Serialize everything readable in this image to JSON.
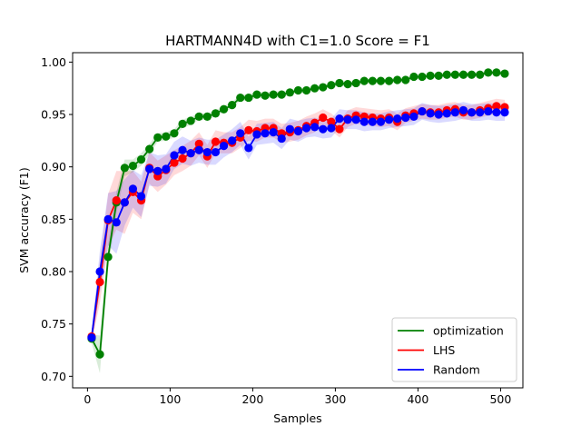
{
  "chart_data": {
    "type": "line",
    "title": "HARTMANN4D with C1=1.0 Score = F1",
    "xlabel": "Samples",
    "ylabel": "SVM accuracy (F1)",
    "xlim": [
      -18,
      527
    ],
    "ylim": [
      0.689,
      1.009
    ],
    "xticks": [
      0,
      100,
      200,
      300,
      400,
      500
    ],
    "yticks": [
      0.7,
      0.75,
      0.8,
      0.85,
      0.9,
      0.95,
      1.0
    ],
    "xtick_labels": [
      "0",
      "100",
      "200",
      "300",
      "400",
      "500"
    ],
    "ytick_labels": [
      "0.70",
      "0.75",
      "0.80",
      "0.85",
      "0.90",
      "0.95",
      "1.00"
    ],
    "grid": false,
    "legend_position": "lower-right",
    "x": [
      5,
      15,
      25,
      35,
      45,
      55,
      65,
      75,
      85,
      95,
      105,
      115,
      125,
      135,
      145,
      155,
      165,
      175,
      185,
      195,
      205,
      215,
      225,
      235,
      245,
      255,
      265,
      275,
      285,
      295,
      305,
      315,
      325,
      335,
      345,
      355,
      365,
      375,
      385,
      395,
      405,
      415,
      425,
      435,
      445,
      455,
      465,
      475,
      485,
      495,
      505
    ],
    "series": [
      {
        "name": "optimization",
        "color": "#008000",
        "values": [
          0.736,
          0.721,
          0.814,
          0.866,
          0.899,
          0.901,
          0.907,
          0.917,
          0.928,
          0.929,
          0.932,
          0.941,
          0.944,
          0.948,
          0.948,
          0.951,
          0.955,
          0.959,
          0.966,
          0.966,
          0.969,
          0.968,
          0.969,
          0.969,
          0.971,
          0.973,
          0.973,
          0.975,
          0.976,
          0.978,
          0.98,
          0.979,
          0.98,
          0.982,
          0.982,
          0.982,
          0.982,
          0.983,
          0.983,
          0.986,
          0.986,
          0.987,
          0.987,
          0.988,
          0.988,
          0.988,
          0.988,
          0.988,
          0.99,
          0.99,
          0.989
        ],
        "band": [
          0.004,
          0.018,
          0.012,
          0.01,
          0.008,
          0.006,
          0.006,
          0.005,
          0.004,
          0.004,
          0.004,
          0.004,
          0.004,
          0.003,
          0.003,
          0.003,
          0.003,
          0.003,
          0.003,
          0.003,
          0.003,
          0.003,
          0.003,
          0.003,
          0.002,
          0.002,
          0.002,
          0.002,
          0.002,
          0.002,
          0.002,
          0.002,
          0.002,
          0.002,
          0.002,
          0.002,
          0.002,
          0.002,
          0.002,
          0.002,
          0.002,
          0.002,
          0.002,
          0.002,
          0.002,
          0.002,
          0.002,
          0.002,
          0.002,
          0.002,
          0.002
        ]
      },
      {
        "name": "LHS",
        "color": "#ff0000",
        "values": [
          0.738,
          0.79,
          0.849,
          0.868,
          0.866,
          0.876,
          0.868,
          0.899,
          0.891,
          0.897,
          0.904,
          0.908,
          0.913,
          0.922,
          0.91,
          0.924,
          0.923,
          0.923,
          0.928,
          0.935,
          0.934,
          0.937,
          0.937,
          0.932,
          0.933,
          0.935,
          0.939,
          0.942,
          0.947,
          0.943,
          0.936,
          0.946,
          0.949,
          0.948,
          0.947,
          0.946,
          0.947,
          0.943,
          0.949,
          0.951,
          0.953,
          0.952,
          0.952,
          0.954,
          0.955,
          0.952,
          0.952,
          0.954,
          0.956,
          0.958,
          0.957
        ],
        "band": [
          0.006,
          0.02,
          0.025,
          0.028,
          0.03,
          0.02,
          0.018,
          0.015,
          0.015,
          0.014,
          0.012,
          0.012,
          0.012,
          0.011,
          0.011,
          0.011,
          0.01,
          0.01,
          0.01,
          0.01,
          0.01,
          0.009,
          0.009,
          0.009,
          0.009,
          0.009,
          0.009,
          0.009,
          0.008,
          0.008,
          0.008,
          0.008,
          0.008,
          0.008,
          0.008,
          0.008,
          0.008,
          0.008,
          0.007,
          0.007,
          0.007,
          0.007,
          0.007,
          0.007,
          0.007,
          0.007,
          0.007,
          0.007,
          0.007,
          0.007,
          0.007
        ]
      },
      {
        "name": "Random",
        "color": "#0000ff",
        "values": [
          0.737,
          0.8,
          0.85,
          0.847,
          0.866,
          0.879,
          0.872,
          0.898,
          0.896,
          0.898,
          0.911,
          0.916,
          0.913,
          0.916,
          0.914,
          0.914,
          0.92,
          0.925,
          0.932,
          0.918,
          0.931,
          0.932,
          0.933,
          0.927,
          0.936,
          0.934,
          0.937,
          0.938,
          0.936,
          0.937,
          0.946,
          0.945,
          0.945,
          0.943,
          0.943,
          0.943,
          0.945,
          0.946,
          0.947,
          0.948,
          0.953,
          0.951,
          0.95,
          0.951,
          0.952,
          0.954,
          0.952,
          0.952,
          0.953,
          0.952,
          0.952
        ],
        "band": [
          0.006,
          0.02,
          0.025,
          0.03,
          0.022,
          0.018,
          0.02,
          0.016,
          0.015,
          0.014,
          0.013,
          0.013,
          0.012,
          0.012,
          0.012,
          0.012,
          0.011,
          0.011,
          0.011,
          0.011,
          0.01,
          0.01,
          0.01,
          0.01,
          0.01,
          0.01,
          0.009,
          0.009,
          0.009,
          0.009,
          0.009,
          0.009,
          0.009,
          0.009,
          0.008,
          0.008,
          0.008,
          0.008,
          0.008,
          0.008,
          0.008,
          0.008,
          0.008,
          0.008,
          0.008,
          0.008,
          0.008,
          0.008,
          0.008,
          0.008,
          0.008
        ]
      }
    ]
  }
}
